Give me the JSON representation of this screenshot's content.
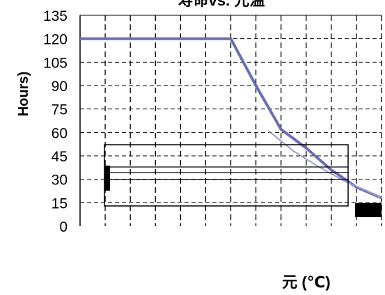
{
  "chart_data": {
    "type": "line",
    "title": "寿命vs. 元温",
    "ylabel": "Hours)",
    "xlabel": "元 (℃)",
    "ylim": [
      0,
      135
    ],
    "yticks": [
      0,
      15,
      30,
      45,
      60,
      75,
      90,
      105,
      120,
      135
    ],
    "x_range": [
      0,
      12
    ],
    "xticks": [
      0,
      1,
      2,
      3,
      4,
      5,
      6,
      7,
      8,
      9,
      10,
      11,
      12
    ],
    "grid": true,
    "series": [
      {
        "color": "#6a6fb0",
        "x": [
          0,
          6,
          7,
          8,
          9,
          10,
          11,
          12
        ],
        "y": [
          120,
          120,
          90,
          62,
          50,
          36,
          25,
          18
        ]
      },
      {
        "color": "#9aa0c8",
        "x": [
          7.5,
          8.5,
          9.5,
          10.5,
          11.5,
          12
        ],
        "y": [
          61,
          48,
          38,
          29,
          22,
          18
        ]
      }
    ]
  }
}
